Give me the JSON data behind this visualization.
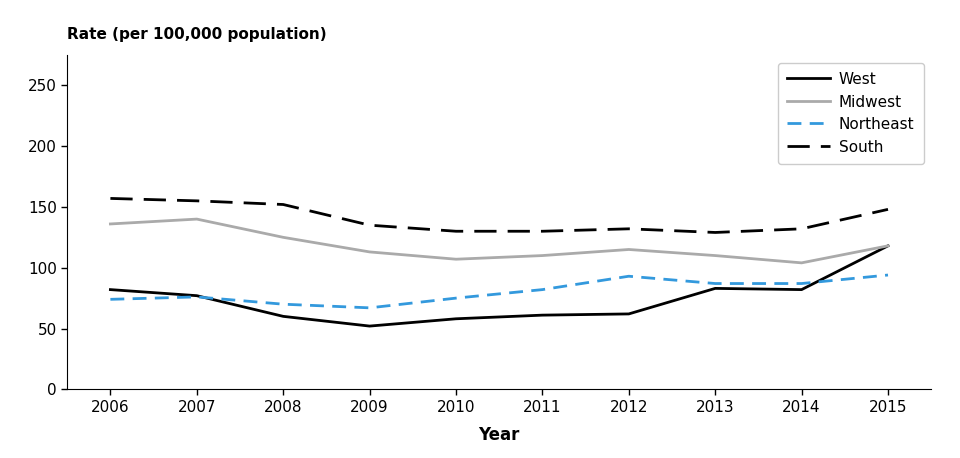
{
  "years": [
    2006,
    2007,
    2008,
    2009,
    2010,
    2011,
    2012,
    2013,
    2014,
    2015
  ],
  "west": [
    82,
    77,
    60,
    52,
    58,
    61,
    62,
    83,
    82,
    118
  ],
  "midwest": [
    136,
    140,
    125,
    113,
    107,
    110,
    115,
    110,
    104,
    118
  ],
  "northeast": [
    74,
    76,
    70,
    67,
    75,
    82,
    93,
    87,
    87,
    94
  ],
  "south": [
    157,
    155,
    152,
    135,
    130,
    130,
    132,
    129,
    132,
    148
  ],
  "west_color": "#000000",
  "midwest_color": "#aaaaaa",
  "northeast_color": "#3399dd",
  "south_color": "#000000",
  "west_label": "West",
  "midwest_label": "Midwest",
  "northeast_label": "Northeast",
  "south_label": "South",
  "ylabel": "Rate (per 100,000 population)",
  "xlabel": "Year",
  "ylim": [
    0,
    275
  ],
  "yticks": [
    0,
    50,
    100,
    150,
    200,
    250
  ],
  "xlim": [
    2005.5,
    2015.5
  ],
  "background_color": "#ffffff",
  "line_width": 2.0
}
